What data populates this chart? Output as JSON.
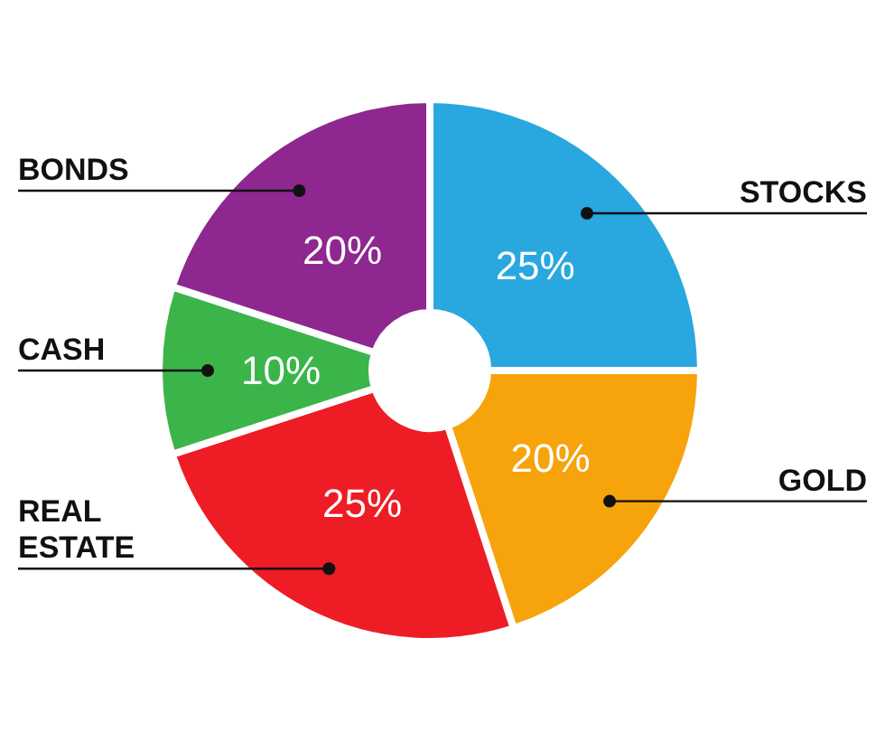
{
  "chart_data": {
    "type": "donut",
    "categories": [
      "STOCKS",
      "GOLD",
      "REAL ESTATE",
      "CASH",
      "BONDS"
    ],
    "values": [
      25,
      20,
      25,
      10,
      20
    ],
    "colors": [
      "#29a8e0",
      "#f7a30c",
      "#ee1c25",
      "#3bb54a",
      "#8e278f"
    ],
    "value_labels": [
      "25%",
      "20%",
      "25%",
      "10%",
      "20%"
    ]
  }
}
